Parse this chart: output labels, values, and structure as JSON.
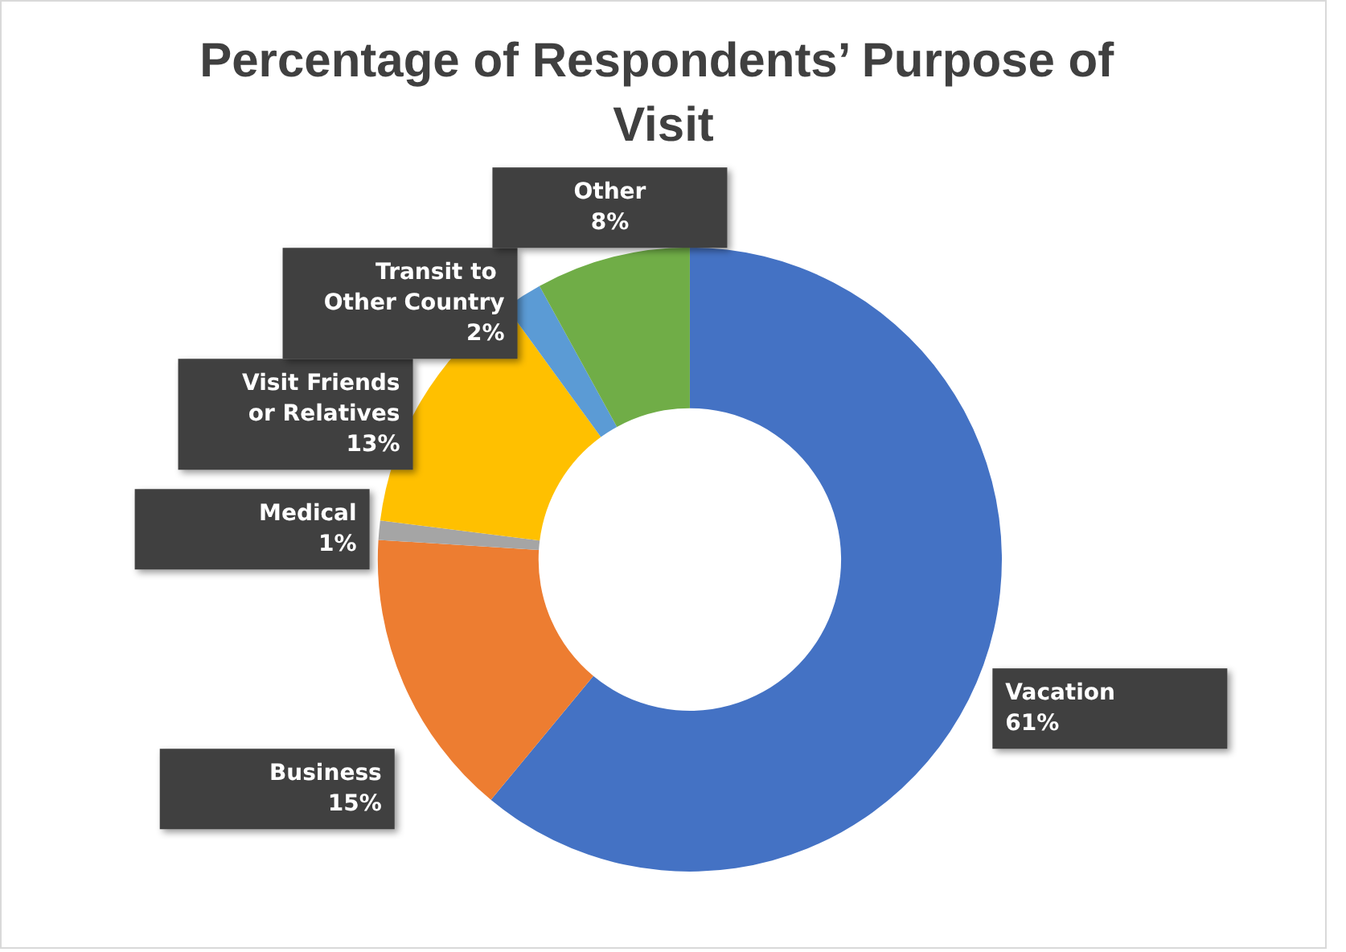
{
  "chart_data": {
    "type": "donut",
    "title": "Percentage of Respondents’ Purpose of Visit",
    "categories": [
      "Vacation",
      "Business",
      "Medical",
      "Visit Friends or Relatives",
      "Transit to Other Country",
      "Other"
    ],
    "values": [
      61,
      15,
      1,
      13,
      2,
      8
    ],
    "colors": [
      "#4472c4",
      "#ed7d31",
      "#a5a5a5",
      "#ffc000",
      "#5b9bd5",
      "#70ad47"
    ],
    "value_labels": [
      "61%",
      "15%",
      "1%",
      "13%",
      "2%",
      "8%"
    ],
    "legend": false
  }
}
